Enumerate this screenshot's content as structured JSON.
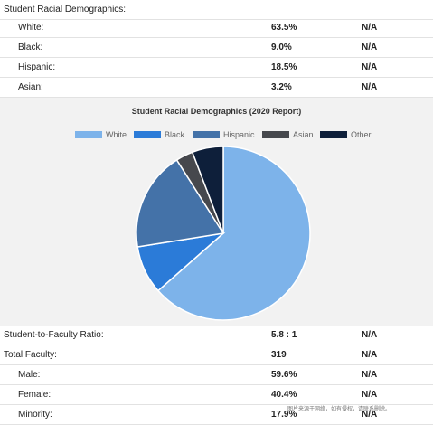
{
  "section_header": "Student Racial Demographics:",
  "demographics": [
    {
      "label": "White:",
      "value": "63.5%",
      "na": "N/A"
    },
    {
      "label": "Black:",
      "value": "9.0%",
      "na": "N/A"
    },
    {
      "label": "Hispanic:",
      "value": "18.5%",
      "na": "N/A"
    },
    {
      "label": "Asian:",
      "value": "3.2%",
      "na": "N/A"
    }
  ],
  "faculty": [
    {
      "label": "Student-to-Faculty Ratio:",
      "value": "5.8 : 1",
      "na": "N/A"
    },
    {
      "label": "Total Faculty:",
      "value": "319",
      "na": "N/A"
    },
    {
      "label": "Male:",
      "value": "59.6%",
      "na": "N/A"
    },
    {
      "label": "Female:",
      "value": "40.4%",
      "na": "N/A"
    },
    {
      "label": "Minority:",
      "value": "17.9%",
      "na": "N/A"
    }
  ],
  "watermark": "图片来源于网络，如有侵权，请联系删除。",
  "chart_data": {
    "type": "pie",
    "title": "Student Racial Demographics (2020 Report)",
    "legend_position": "top",
    "categories": [
      "White",
      "Black",
      "Hispanic",
      "Asian",
      "Other"
    ],
    "values": [
      63.5,
      9.0,
      18.5,
      3.2,
      5.8
    ],
    "colors": [
      "#7db3ea",
      "#2b7bd8",
      "#4472a8",
      "#46484d",
      "#0e1f3a"
    ]
  }
}
